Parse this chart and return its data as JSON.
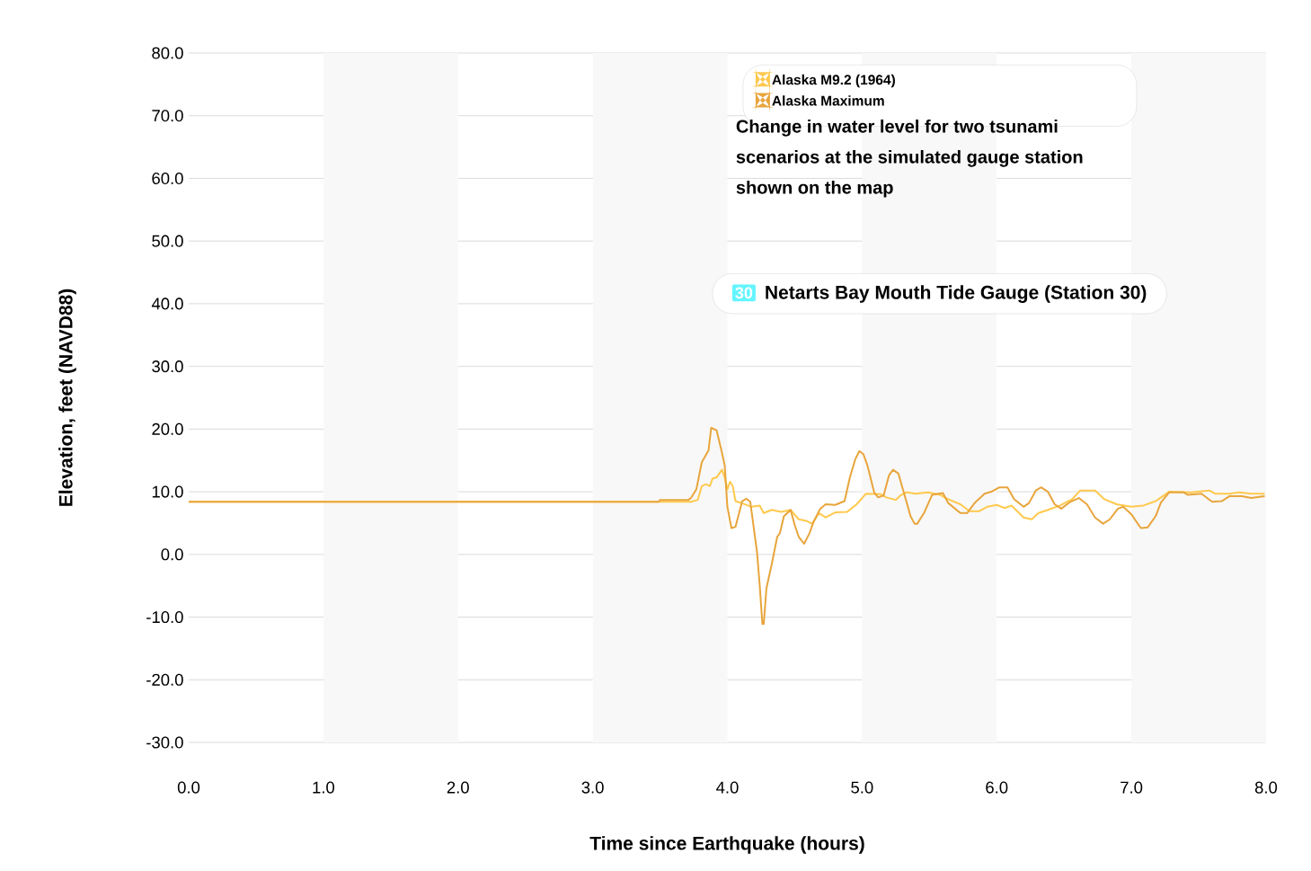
{
  "chart_data": {
    "type": "line",
    "title": "Netarts Bay Mouth Tide Gauge (Station 30)",
    "xlabel": "Time since  Earthquake  (hours)",
    "ylabel": "Elevation, feet (NAVD88)",
    "annotations": [
      "Change in water level for two tsunami scenarios at the simulated gauge station shown on the map",
      "30"
    ],
    "xlim": [
      0,
      8
    ],
    "xticks": [
      {
        "value": 0,
        "label": "0.0"
      },
      {
        "value": 1,
        "label": "1.0"
      },
      {
        "value": 2,
        "label": "2.0"
      },
      {
        "value": 3,
        "label": "3.0"
      },
      {
        "value": 4,
        "label": "4.0"
      },
      {
        "value": 5,
        "label": "5.0"
      },
      {
        "value": 6,
        "label": "6.0"
      },
      {
        "value": 7,
        "label": "7.0"
      },
      {
        "value": 8,
        "label": "8.0"
      }
    ],
    "ylim": [
      -30,
      80
    ],
    "yticks": [
      {
        "value": -30,
        "label": "-30.0"
      },
      {
        "value": -20,
        "label": "-20.0"
      },
      {
        "value": -10,
        "label": "-10.0"
      },
      {
        "value": 0,
        "label": "0.0"
      },
      {
        "value": 10,
        "label": "10.0"
      },
      {
        "value": 20,
        "label": "20.0"
      },
      {
        "value": 30,
        "label": "30.0"
      },
      {
        "value": 40,
        "label": "40.0"
      },
      {
        "value": 50,
        "label": "50.0"
      },
      {
        "value": 60,
        "label": "60.0"
      },
      {
        "value": 70,
        "label": "70.0"
      },
      {
        "value": 80,
        "label": "80.0"
      }
    ],
    "grid": "y",
    "legend": "top right",
    "line_style": "solid",
    "bands": [
      {
        "axis": "x",
        "from": 1,
        "to": 2,
        "color": "#f8f8f8"
      },
      {
        "axis": "x",
        "from": 3,
        "to": 4,
        "color": "#f8f8f8"
      },
      {
        "axis": "x",
        "from": 5,
        "to": 6,
        "color": "#f8f8f8"
      },
      {
        "axis": "x",
        "from": 7,
        "to": 8,
        "color": "#f8f8f8"
      }
    ],
    "series": [
      {
        "name": "Alaska M9.2 (1964)",
        "color": "#ffc94d",
        "x": [
          0,
          3.73,
          3.78,
          3.81,
          3.84,
          3.87,
          3.89,
          3.92,
          3.96,
          3.98,
          4.0,
          4.02,
          4.04,
          4.06,
          4.09,
          4.18,
          4.24,
          4.27,
          4.33,
          4.4,
          4.47,
          4.53,
          4.58,
          4.63,
          4.68,
          4.73,
          4.8,
          4.89,
          4.96,
          5.03,
          5.14,
          5.18,
          5.25,
          5.29,
          5.33,
          5.4,
          5.49,
          5.58,
          5.64,
          5.73,
          5.8,
          5.87,
          5.93,
          6.0,
          6.06,
          6.11,
          6.2,
          6.26,
          6.31,
          6.38,
          6.47,
          6.56,
          6.62,
          6.73,
          6.8,
          6.89,
          7.0,
          7.09,
          7.18,
          7.22,
          7.28,
          7.44,
          7.58,
          7.62,
          7.73,
          7.8,
          7.89,
          7.99
        ],
        "values": [
          8.4,
          8.4,
          8.7,
          10.9,
          11.2,
          10.9,
          12.1,
          12.3,
          13.5,
          12.3,
          10.4,
          11.6,
          10.9,
          8.5,
          8.3,
          7.6,
          7.8,
          6.6,
          7.1,
          6.8,
          7.1,
          5.6,
          5.4,
          4.9,
          6.6,
          5.9,
          6.7,
          6.8,
          8.0,
          9.7,
          9.6,
          9.1,
          8.7,
          9.5,
          9.9,
          9.7,
          9.9,
          9.5,
          8.8,
          8.0,
          6.9,
          6.9,
          7.6,
          7.9,
          7.4,
          7.8,
          5.9,
          5.6,
          6.6,
          7.1,
          7.8,
          8.8,
          10.2,
          10.2,
          8.8,
          8.0,
          7.6,
          7.8,
          8.5,
          9.1,
          10.0,
          9.9,
          10.2,
          9.7,
          9.7,
          9.9,
          9.7,
          9.7
        ]
      },
      {
        "name": "Alaska Maximum",
        "color": "#e8a53c",
        "x": [
          0,
          3.49,
          3.5,
          3.71,
          3.73,
          3.77,
          3.81,
          3.86,
          3.88,
          3.92,
          3.96,
          3.98,
          4.0,
          4.03,
          4.06,
          4.11,
          4.14,
          4.17,
          4.22,
          4.24,
          4.26,
          4.27,
          4.29,
          4.33,
          4.37,
          4.39,
          4.42,
          4.47,
          4.5,
          4.53,
          4.57,
          4.61,
          4.64,
          4.69,
          4.73,
          4.8,
          4.87,
          4.91,
          4.95,
          4.98,
          5.01,
          5.04,
          5.09,
          5.12,
          5.16,
          5.2,
          5.23,
          5.27,
          5.31,
          5.36,
          5.39,
          5.41,
          5.46,
          5.52,
          5.6,
          5.64,
          5.73,
          5.78,
          5.84,
          5.91,
          5.96,
          6.02,
          6.08,
          6.13,
          6.2,
          6.24,
          6.29,
          6.33,
          6.38,
          6.43,
          6.48,
          6.54,
          6.61,
          6.67,
          6.73,
          6.79,
          6.84,
          6.9,
          6.94,
          7.0,
          7.07,
          7.12,
          7.18,
          7.22,
          7.28,
          7.39,
          7.42,
          7.52,
          7.6,
          7.67,
          7.73,
          7.82,
          7.89,
          7.99
        ],
        "values": [
          8.4,
          8.4,
          8.7,
          8.7,
          9.0,
          10.4,
          14.7,
          16.6,
          20.2,
          19.8,
          16.2,
          14.2,
          7.6,
          4.2,
          4.4,
          8.5,
          8.9,
          8.4,
          0.4,
          -4.9,
          -11.1,
          -11.1,
          -5.4,
          -1.5,
          2.8,
          3.4,
          6.1,
          7.1,
          4.7,
          2.8,
          1.7,
          3.4,
          5.2,
          7.3,
          8.0,
          7.9,
          8.5,
          12.3,
          15.2,
          16.5,
          16.0,
          14.2,
          9.9,
          9.1,
          9.4,
          12.6,
          13.5,
          12.9,
          9.9,
          6.1,
          4.9,
          4.9,
          6.6,
          9.5,
          9.8,
          8.2,
          6.6,
          6.6,
          8.3,
          9.7,
          10.0,
          10.7,
          10.7,
          8.8,
          7.6,
          8.2,
          10.2,
          10.7,
          10.0,
          8.0,
          7.3,
          8.3,
          9.0,
          8.0,
          5.9,
          4.9,
          5.6,
          7.3,
          7.6,
          6.4,
          4.2,
          4.3,
          6.1,
          8.3,
          9.9,
          9.9,
          9.5,
          9.7,
          8.4,
          8.5,
          9.3,
          9.3,
          9.0,
          9.3
        ]
      }
    ]
  }
}
